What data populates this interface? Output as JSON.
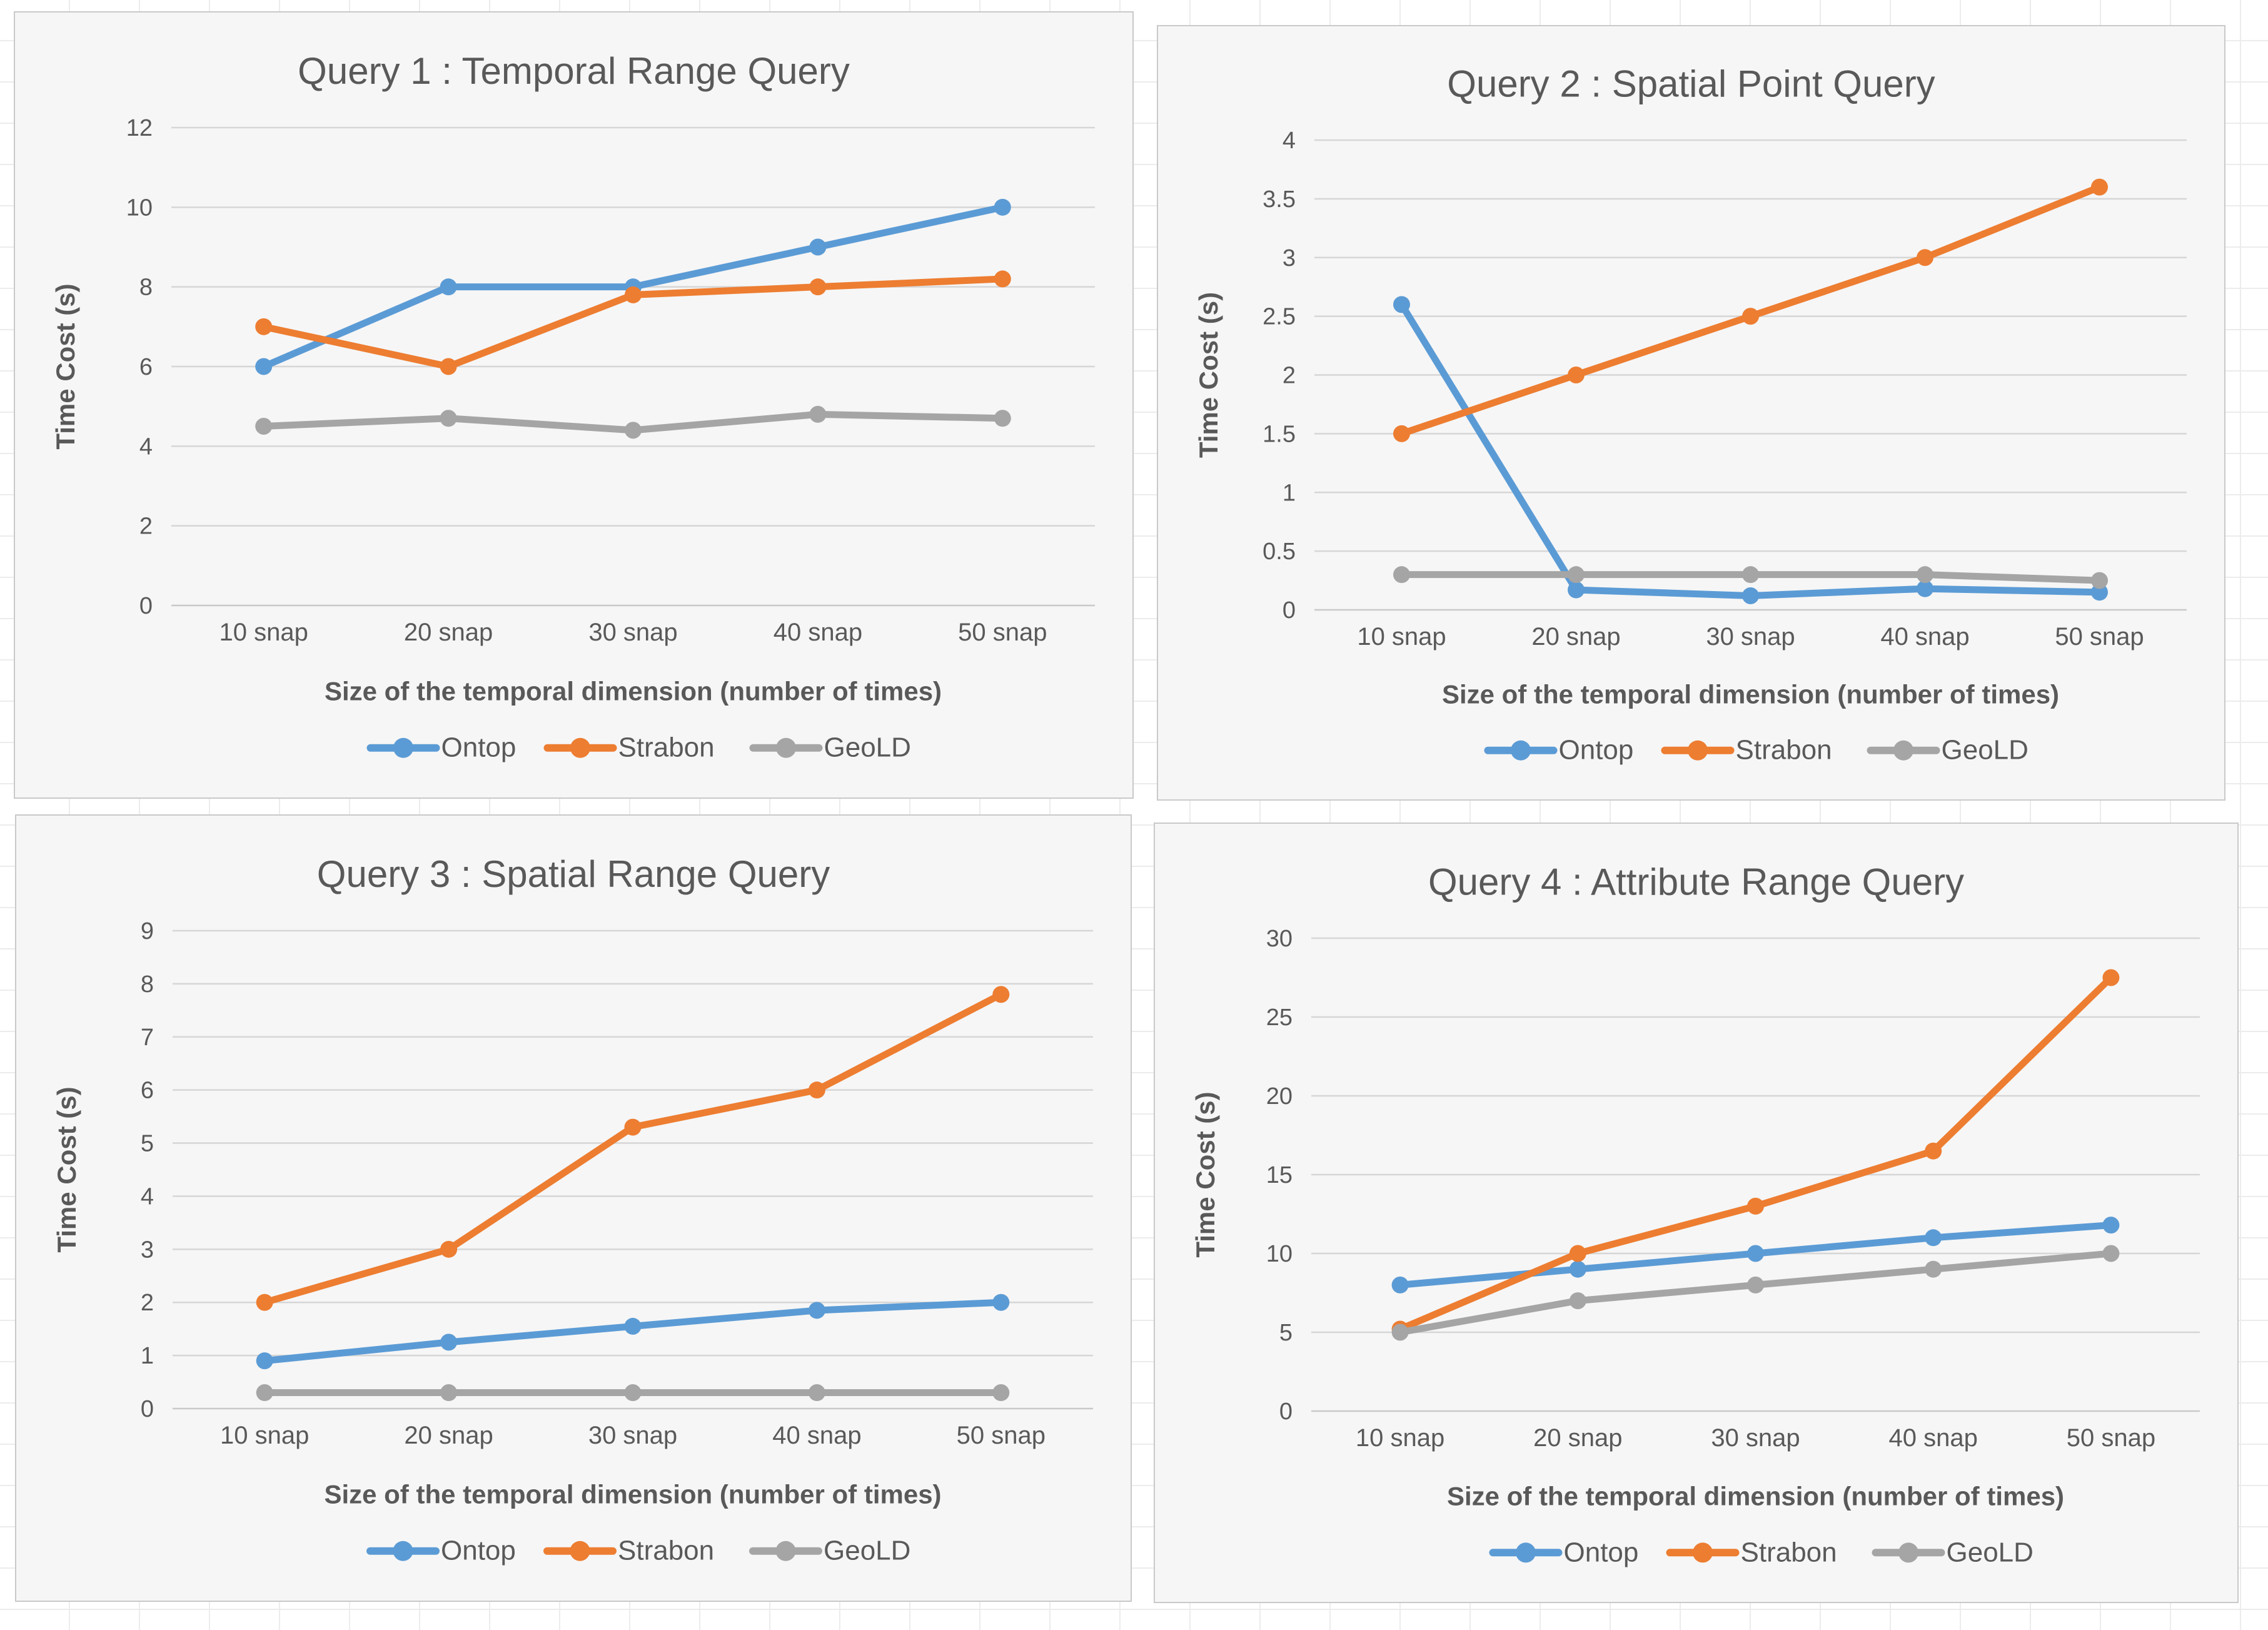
{
  "palette": {
    "ontop": "#5B9BD5",
    "strabon": "#ED7D31",
    "geold": "#A5A5A5",
    "text": "#595959",
    "gridline": "#D6D6D6",
    "axis_line": "#C9C9C9",
    "panel_background": "#F6F6F6",
    "panel_border": "#C9C9C9",
    "sheet_gridline": "#ECECEC"
  },
  "legend_labels": [
    "Ontop",
    "Strabon",
    "GeoLD"
  ],
  "chart_data": [
    {
      "type": "line",
      "title": "Query 1 : Temporal Range Query",
      "categories": [
        "10 snap",
        "20 snap",
        "30 snap",
        "40 snap",
        "50 snap"
      ],
      "series": [
        {
          "name": "Ontop",
          "color": "#5B9BD5",
          "values": [
            6,
            8,
            8,
            9,
            10
          ]
        },
        {
          "name": "Strabon",
          "color": "#ED7D31",
          "values": [
            7,
            6,
            7.8,
            8,
            8.2
          ]
        },
        {
          "name": "GeoLD",
          "color": "#A5A5A5",
          "values": [
            4.5,
            4.7,
            4.4,
            4.8,
            4.7
          ]
        }
      ],
      "xlabel": "Size of the temporal dimension (number of times)",
      "ylabel": "Time Cost (s)",
      "ylim": [
        0,
        12
      ],
      "yticks": [
        0,
        2,
        4,
        6,
        8,
        10,
        12
      ],
      "grid": true,
      "markers": true,
      "legend_position": "bottom"
    },
    {
      "type": "line",
      "title": "Query 2 : Spatial Point Query",
      "categories": [
        "10 snap",
        "20 snap",
        "30 snap",
        "40 snap",
        "50 snap"
      ],
      "series": [
        {
          "name": "Ontop",
          "color": "#5B9BD5",
          "values": [
            2.6,
            0.17,
            0.12,
            0.18,
            0.15
          ]
        },
        {
          "name": "Strabon",
          "color": "#ED7D31",
          "values": [
            1.5,
            2,
            2.5,
            3,
            3.6
          ]
        },
        {
          "name": "GeoLD",
          "color": "#A5A5A5",
          "values": [
            0.3,
            0.3,
            0.3,
            0.3,
            0.25
          ]
        }
      ],
      "xlabel": "Size of the temporal dimension (number of times)",
      "ylabel": "Time Cost (s)",
      "ylim": [
        0,
        4
      ],
      "yticks": [
        0,
        0.5,
        1,
        1.5,
        2,
        2.5,
        3,
        3.5,
        4
      ],
      "grid": true,
      "markers": true,
      "legend_position": "bottom"
    },
    {
      "type": "line",
      "title": "Query 3 : Spatial Range Query",
      "categories": [
        "10 snap",
        "20 snap",
        "30 snap",
        "40 snap",
        "50 snap"
      ],
      "series": [
        {
          "name": "Ontop",
          "color": "#5B9BD5",
          "values": [
            0.9,
            1.25,
            1.55,
            1.85,
            2
          ]
        },
        {
          "name": "Strabon",
          "color": "#ED7D31",
          "values": [
            2,
            3,
            5.3,
            6,
            7.8
          ]
        },
        {
          "name": "GeoLD",
          "color": "#A5A5A5",
          "values": [
            0.3,
            0.3,
            0.3,
            0.3,
            0.3
          ]
        }
      ],
      "xlabel": "Size of the temporal dimension (number of times)",
      "ylabel": "Time Cost (s)",
      "ylim": [
        0,
        9
      ],
      "yticks": [
        0,
        1,
        2,
        3,
        4,
        5,
        6,
        7,
        8,
        9
      ],
      "grid": true,
      "markers": true,
      "legend_position": "bottom"
    },
    {
      "type": "line",
      "title": "Query 4 : Attribute Range Query",
      "categories": [
        "10 snap",
        "20 snap",
        "30 snap",
        "40 snap",
        "50 snap"
      ],
      "series": [
        {
          "name": "Ontop",
          "color": "#5B9BD5",
          "values": [
            8,
            9,
            10,
            11,
            11.8
          ]
        },
        {
          "name": "Strabon",
          "color": "#ED7D31",
          "values": [
            5.2,
            10,
            13,
            16.5,
            27.5
          ]
        },
        {
          "name": "GeoLD",
          "color": "#A5A5A5",
          "values": [
            5,
            7,
            8,
            9,
            10
          ]
        }
      ],
      "xlabel": "Size of the temporal dimension (number of times)",
      "ylabel": "Time Cost (s)",
      "ylim": [
        0,
        30
      ],
      "yticks": [
        0,
        5,
        10,
        15,
        20,
        25,
        30
      ],
      "grid": true,
      "markers": true,
      "legend_position": "bottom"
    }
  ]
}
